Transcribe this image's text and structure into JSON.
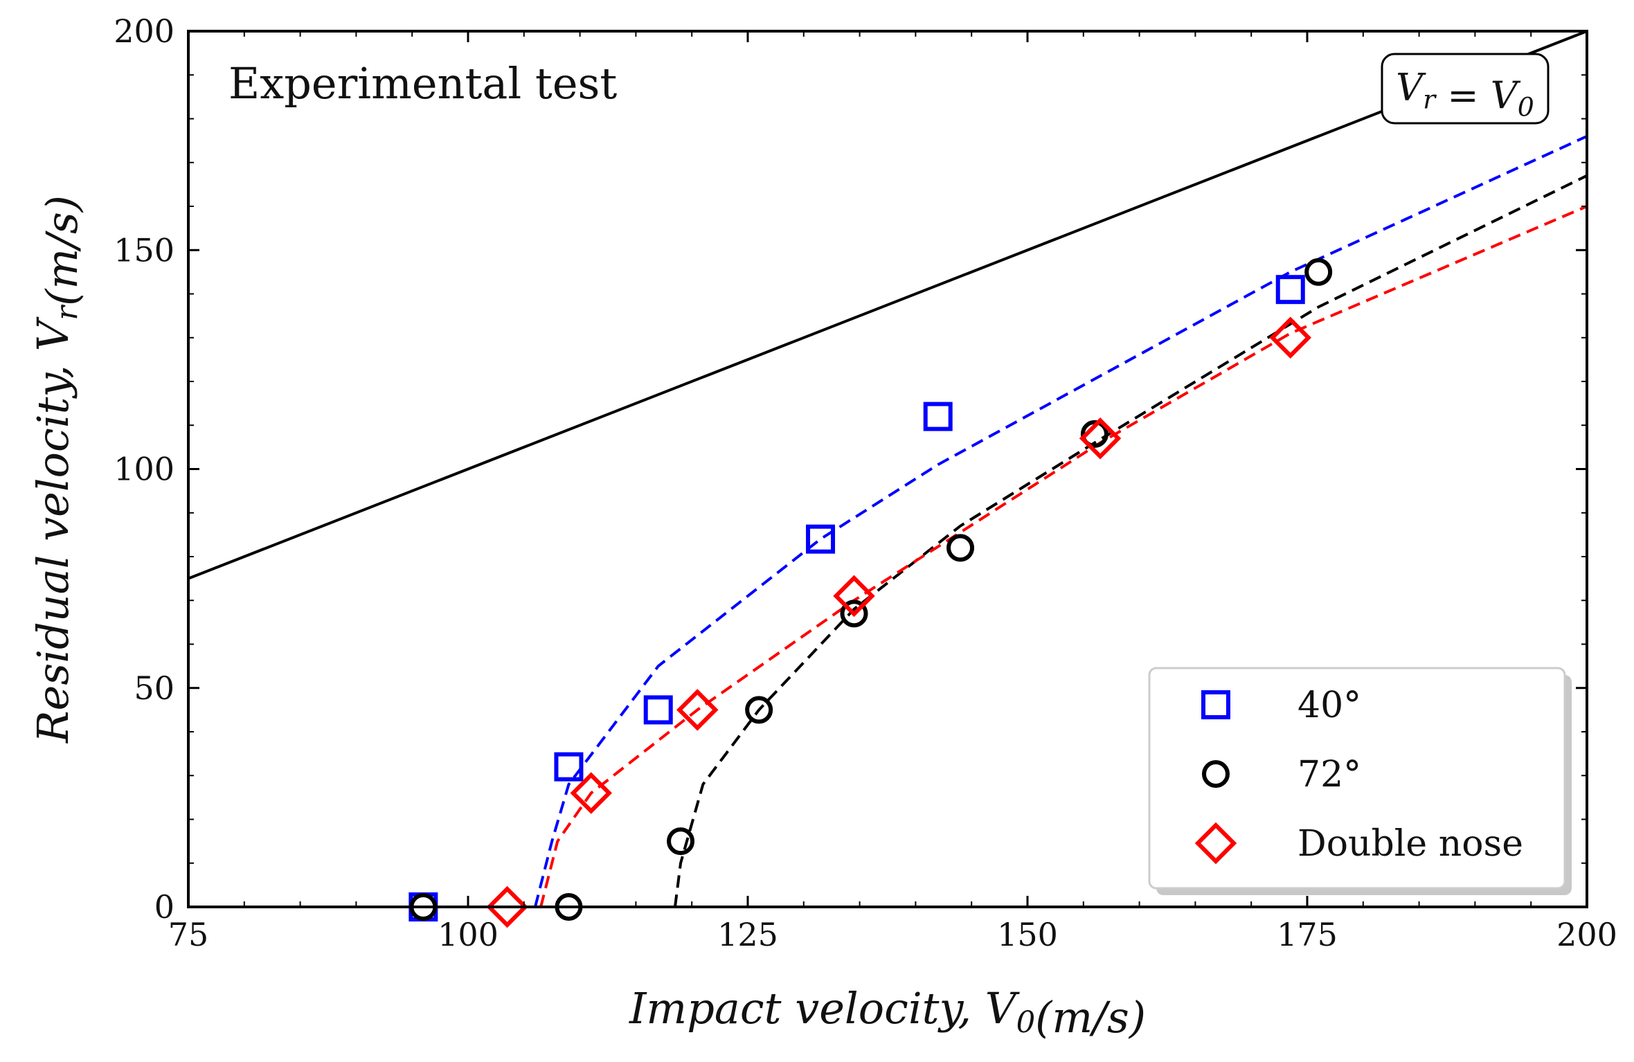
{
  "chart_data": {
    "type": "scatter",
    "annotation": "Experimental test",
    "equality_label": "V_r = V_0",
    "xlabel": "Impact velocity, V_0(m/s)",
    "ylabel": "Residual velocity, V_r(m/s)",
    "xlim": [
      75,
      200
    ],
    "ylim": [
      0,
      200
    ],
    "xticks": [
      "75",
      "100",
      "125",
      "150",
      "175",
      "200"
    ],
    "yticks": [
      "0",
      "50",
      "100",
      "150",
      "200"
    ],
    "grid": false,
    "legend_position": "bottom-right",
    "reference_line": {
      "name": "V_r = V_0",
      "x": [
        75,
        200
      ],
      "y": [
        75,
        200
      ],
      "color": "#000000"
    },
    "series": [
      {
        "name": "40°",
        "marker": "square",
        "color": "#0000ff",
        "points": [
          [
            96,
            0
          ],
          [
            109,
            32
          ],
          [
            117,
            45
          ],
          [
            131.5,
            84
          ],
          [
            142,
            112
          ],
          [
            173.5,
            141
          ]
        ],
        "fit": [
          [
            106,
            0
          ],
          [
            107.5,
            15
          ],
          [
            109,
            28
          ],
          [
            117,
            55
          ],
          [
            131.5,
            84
          ],
          [
            142,
            101
          ],
          [
            173.5,
            145
          ],
          [
            200,
            176
          ]
        ]
      },
      {
        "name": "72°",
        "marker": "circle",
        "color": "#000000",
        "points": [
          [
            96,
            0
          ],
          [
            109,
            0
          ],
          [
            119,
            15
          ],
          [
            126,
            45
          ],
          [
            134.5,
            67
          ],
          [
            144,
            82
          ],
          [
            156,
            108
          ],
          [
            176,
            145
          ]
        ],
        "fit": [
          [
            118.5,
            0
          ],
          [
            119,
            10
          ],
          [
            121,
            28
          ],
          [
            126,
            45
          ],
          [
            134.5,
            68
          ],
          [
            144,
            87
          ],
          [
            156,
            106
          ],
          [
            176,
            137
          ],
          [
            200,
            167
          ]
        ]
      },
      {
        "name": "Double nose",
        "marker": "diamond",
        "color": "#ff0000",
        "points": [
          [
            103.5,
            0
          ],
          [
            111,
            26
          ],
          [
            120.5,
            45
          ],
          [
            134.5,
            71
          ],
          [
            156.5,
            107
          ],
          [
            173.5,
            130
          ]
        ],
        "fit": [
          [
            106.5,
            0
          ],
          [
            108,
            15
          ],
          [
            111,
            26
          ],
          [
            120.5,
            45
          ],
          [
            134.5,
            70
          ],
          [
            156.5,
            106
          ],
          [
            173.5,
            131
          ],
          [
            200,
            160
          ]
        ]
      }
    ]
  }
}
